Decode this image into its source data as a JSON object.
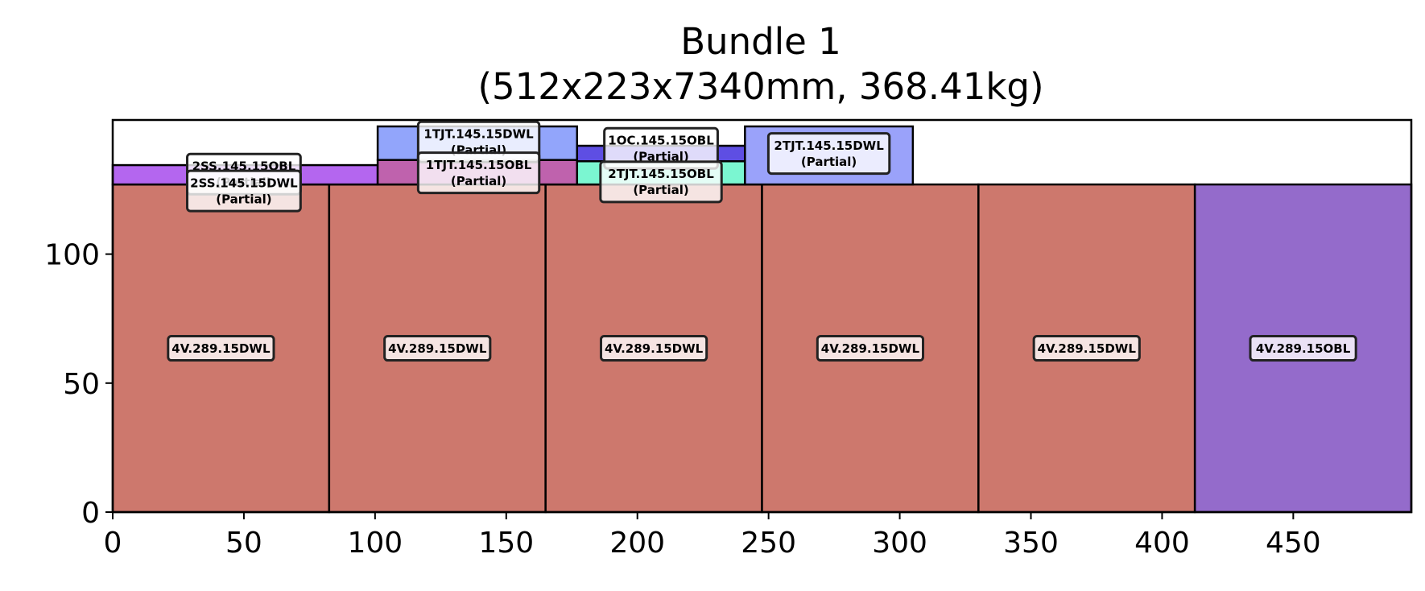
{
  "chart_data": {
    "type": "bar",
    "title": "Bundle 1\n(512x223x7340mm, 368.41kg)",
    "xlabel": "",
    "ylabel": "",
    "xlim": [
      0,
      495
    ],
    "ylim": [
      0,
      152
    ],
    "xticks": [
      0,
      50,
      100,
      150,
      200,
      250,
      300,
      350,
      400,
      450
    ],
    "yticks": [
      0,
      50,
      100
    ],
    "grid": false,
    "legend": "none",
    "rects": [
      {
        "x": 0,
        "y": 0,
        "w": 82.5,
        "h": 127,
        "color": "#cd786d",
        "label": ""
      },
      {
        "x": 82.5,
        "y": 0,
        "w": 82.5,
        "h": 127,
        "color": "#cd786d",
        "label": ""
      },
      {
        "x": 165,
        "y": 0,
        "w": 82.5,
        "h": 127,
        "color": "#cd786d",
        "label": ""
      },
      {
        "x": 247.5,
        "y": 0,
        "w": 82.5,
        "h": 127,
        "color": "#cd786d",
        "label": ""
      },
      {
        "x": 330,
        "y": 0,
        "w": 82.5,
        "h": 127,
        "color": "#cd786d",
        "label": ""
      },
      {
        "x": 412.5,
        "y": 0,
        "w": 82.5,
        "h": 127,
        "color": "#946bcb",
        "label": ""
      },
      {
        "x": 0,
        "y": 127,
        "w": 101,
        "h": 7.5,
        "color": "#b466ef",
        "label": ""
      },
      {
        "x": 101,
        "y": 127,
        "w": 76,
        "h": 9.5,
        "color": "#bf62ad",
        "label": ""
      },
      {
        "x": 101,
        "y": 136.5,
        "w": 76,
        "h": 13,
        "color": "#92a5fb",
        "label": ""
      },
      {
        "x": 177,
        "y": 127,
        "w": 64,
        "h": 9,
        "color": "#7bf6d1",
        "label": ""
      },
      {
        "x": 177,
        "y": 136,
        "w": 64,
        "h": 6,
        "color": "#5e4ee3",
        "label": ""
      },
      {
        "x": 241,
        "y": 127,
        "w": 64,
        "h": 22.5,
        "color": "#9aa2fa",
        "label": ""
      }
    ],
    "annotations": [
      {
        "x": 50,
        "y": 131,
        "lines": [
          "2SS.145.15OBL",
          "(Partial)"
        ]
      },
      {
        "x": 50,
        "y": 124.5,
        "lines": [
          "2SS.145.15DWL",
          "(Partial)"
        ]
      },
      {
        "x": 139.5,
        "y": 143.5,
        "lines": [
          "1TJT.145.15DWL",
          "(Partial)"
        ]
      },
      {
        "x": 139.5,
        "y": 131.5,
        "lines": [
          "1TJT.145.15OBL",
          "(Partial)"
        ]
      },
      {
        "x": 209,
        "y": 141,
        "lines": [
          "1OC.145.15OBL",
          "(Partial)"
        ]
      },
      {
        "x": 209,
        "y": 128,
        "lines": [
          "2TJT.145.15OBL",
          "(Partial)"
        ]
      },
      {
        "x": 273,
        "y": 139,
        "lines": [
          "2TJT.145.15DWL",
          "(Partial)"
        ]
      },
      {
        "x": 41.25,
        "y": 63.5,
        "lines": [
          "4V.289.15DWL"
        ]
      },
      {
        "x": 123.75,
        "y": 63.5,
        "lines": [
          "4V.289.15DWL"
        ]
      },
      {
        "x": 206.25,
        "y": 63.5,
        "lines": [
          "4V.289.15DWL"
        ]
      },
      {
        "x": 288.75,
        "y": 63.5,
        "lines": [
          "4V.289.15DWL"
        ]
      },
      {
        "x": 371.25,
        "y": 63.5,
        "lines": [
          "4V.289.15DWL"
        ]
      },
      {
        "x": 453.75,
        "y": 63.5,
        "lines": [
          "4V.289.15OBL"
        ]
      }
    ]
  }
}
